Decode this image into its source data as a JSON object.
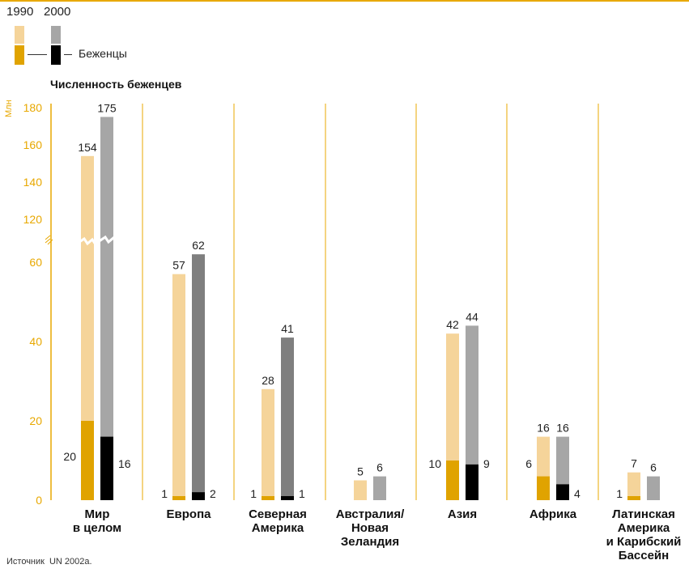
{
  "legend": {
    "year_a": "1990",
    "year_b": "2000",
    "refugees_label": "Беженцы"
  },
  "source": {
    "label": "Источник",
    "text": "UN 2002a."
  },
  "colors": {
    "accent": "#E8A800",
    "total_1990": "#F5D49A",
    "total_2000": "#A6A6A6",
    "refugees_1990": "#E0A300",
    "refugees_2000": "#000000",
    "europe_na_2000": "#7F7F7F"
  },
  "chart_data": {
    "type": "bar",
    "title": "Численность беженцев",
    "ylabel": "Млн",
    "yticks_lower": [
      0,
      20,
      40,
      60
    ],
    "yticks_upper": [
      120,
      140,
      160,
      180
    ],
    "axis_break": true,
    "categories": [
      "Мир в целом",
      "Европа",
      "Северная Америка",
      "Австралия/ Новая Зеландия",
      "Азия",
      "Африка",
      "Латинская Америка и Карибский Бассейн"
    ],
    "category_lines": [
      [
        "Мир",
        "в целом"
      ],
      [
        "Европа"
      ],
      [
        "Северная",
        "Америка"
      ],
      [
        "Австралия/",
        "Новая",
        "Зеландия"
      ],
      [
        "Азия"
      ],
      [
        "Африка"
      ],
      [
        "Латинская",
        "Америка",
        "и Карибский",
        "Бассейн"
      ]
    ],
    "series": [
      {
        "name": "1990",
        "values": [
          154,
          57,
          28,
          5,
          42,
          16,
          7
        ]
      },
      {
        "name": "2000",
        "values": [
          175,
          62,
          41,
          6,
          44,
          16,
          6
        ]
      },
      {
        "name": "Беженцы 1990",
        "values": [
          20,
          1,
          1,
          0,
          10,
          6,
          1
        ]
      },
      {
        "name": "Беженцы 2000",
        "values": [
          16,
          2,
          1,
          0,
          9,
          4,
          0
        ]
      }
    ],
    "refugee_labels_1990": [
      "20",
      "1",
      "1",
      "",
      "10",
      "6",
      "1"
    ],
    "refugee_labels_2000": [
      "16",
      "2",
      "1",
      "",
      "9",
      "4",
      ""
    ]
  }
}
